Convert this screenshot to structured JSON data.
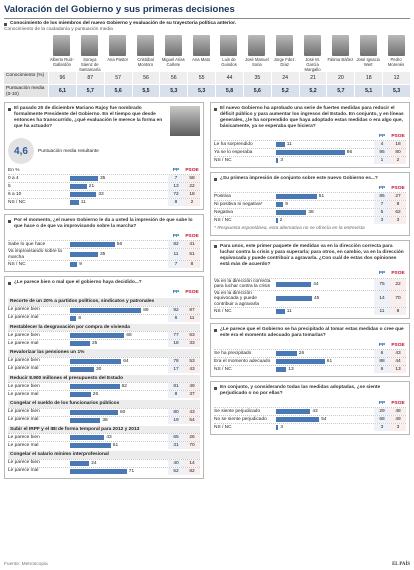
{
  "title": "Valoración del Gobierno y sus primeras decisiones",
  "ministers_section": {
    "intro": "Conocimiento de los miembros del nuevo Gobierno y evaluación de su trayectoria política anterior.",
    "subtitle": "Conocimiento de la ciudadanía y puntuación media",
    "names": [
      "Alberto Ruiz-Gallardón",
      "Soraya Sáenz de Santamaría",
      "Ana Pastor",
      "Cristóbal Montoro",
      "Miguel Arias Cañete",
      "Ana Mato",
      "Luis de Guindos",
      "José Manuel Soria",
      "Jorge Fdez. Díaz",
      "José M. García Margallo",
      "Fátima Báñez",
      "José Ignacio Wert",
      "Pedro Morenés"
    ],
    "rows": [
      {
        "label": "Conocimiento (%)",
        "values": [
          96,
          87,
          57,
          56,
          56,
          55,
          44,
          35,
          24,
          21,
          20,
          18,
          12
        ]
      },
      {
        "label": "Puntuación media (0-10)",
        "values": [
          "6,1",
          "5,7",
          "5,6",
          "5,5",
          "5,3",
          "5,3",
          "5,8",
          "5,6",
          "5,2",
          "5,2",
          "5,7",
          "5,1",
          "5,3"
        ]
      }
    ]
  },
  "left": [
    {
      "question": "El pasado 20 de diciembre Mariano Rajoy fue nombrado formalmente Presidente del Gobierno. En el tiempo que desde entonces ha transcurrido, ¿qué evaluación le merece la forma en que ha actuado?",
      "score": "4,6",
      "score_label": "Puntuación media resultante",
      "unit": "En %",
      "column_labels": [
        "PP",
        "PSOE"
      ],
      "rows": [
        {
          "label": "0 a 4",
          "values": [
            35,
            7,
            58
          ]
        },
        {
          "label": "5",
          "values": [
            21,
            13,
            22
          ]
        },
        {
          "label": "6 a 10",
          "values": [
            33,
            72,
            18
          ]
        },
        {
          "label": "NS / NC",
          "values": [
            11,
            8,
            2
          ]
        }
      ]
    },
    {
      "question": "Por el momento, ¿el nuevo Gobierno le da a usted la impresión de que sabe lo que hace o de que va improvisando sobre la marcha?",
      "column_labels": [
        "PP",
        "PSOE"
      ],
      "rows": [
        {
          "label": "Sabe lo que hace",
          "values": [
            56,
            82,
            41
          ]
        },
        {
          "label": "Va improvisando sobre la marcha",
          "values": [
            35,
            11,
            51
          ]
        },
        {
          "label": "NS / NC",
          "values": [
            9,
            7,
            8
          ]
        }
      ]
    },
    {
      "question": "¿Le parece bien o mal que el gobierno haya decidido...?",
      "column_labels": [
        "PP",
        "PSOE"
      ],
      "groups": [
        {
          "title": "Recorte de un 20% a partidos políticos, sindicatos y patronales",
          "rows": [
            {
              "label": "Le parece bien",
              "values": [
                89,
                92,
                87
              ]
            },
            {
              "label": "Le parece mal",
              "values": [
                8,
                6,
                11
              ]
            }
          ]
        },
        {
          "title": "Restablecer la desgravación por compra de vivienda",
          "rows": [
            {
              "label": "Le parece bien",
              "values": [
                68,
                77,
                63
              ]
            },
            {
              "label": "Le parece mal",
              "values": [
                25,
                18,
                33
              ]
            }
          ]
        },
        {
          "title": "Revalorizar las pensiones un 1%",
          "rows": [
            {
              "label": "Le parece bien",
              "values": [
                64,
                78,
                53
              ]
            },
            {
              "label": "Le parece mal",
              "values": [
                30,
                17,
                43
              ]
            }
          ]
        },
        {
          "title": "Reducir 8.900 millones el presupuesto del Estado",
          "rows": [
            {
              "label": "Le parece bien",
              "values": [
                62,
                81,
                49
              ]
            },
            {
              "label": "Le parece mal",
              "values": [
                26,
                8,
                37
              ]
            }
          ]
        },
        {
          "title": "Congelar el sueldo de los funcionarios públicos",
          "rows": [
            {
              "label": "Le parece bien",
              "values": [
                60,
                80,
                43
              ]
            },
            {
              "label": "Le parece mal",
              "values": [
                38,
                19,
                54
              ]
            }
          ]
        },
        {
          "title": "Subir el IRPF y el IBI de forma temporal para 2012 y 2013",
          "rows": [
            {
              "label": "Le parece bien",
              "values": [
                43,
                65,
                26
              ]
            },
            {
              "label": "Le parece mal",
              "values": [
                51,
                31,
                70
              ]
            }
          ]
        },
        {
          "title": "Congelar el salario mínimo interprofesional",
          "rows": [
            {
              "label": "Le parece bien",
              "values": [
                24,
                40,
                14
              ]
            },
            {
              "label": "Le parece mal",
              "values": [
                71,
                52,
                82
              ]
            }
          ]
        }
      ]
    }
  ],
  "right": [
    {
      "question": "El nuevo Gobierno ha aprobado una serie de fuertes medidas para reducir el déficit público y para aumentar los ingresos del Estado. En conjunto, y en líneas generales, ¿le ha sorprendido que haya adoptado estas medidas o era algo que, básicamente, ya se esperaba que hiciera?",
      "column_labels": [
        "PP",
        "PSOE"
      ],
      "rows": [
        {
          "label": "Le ha sorprendido",
          "values": [
            11,
            4,
            18
          ]
        },
        {
          "label": "Ya se lo esperaba",
          "values": [
            86,
            95,
            80
          ]
        },
        {
          "label": "NS / NC",
          "values": [
            3,
            1,
            2
          ]
        }
      ]
    },
    {
      "question": "¿Su primera impresión de conjunto sobre este nuevo Gobierno es...?",
      "column_labels": [
        "PP",
        "PSOE"
      ],
      "rows": [
        {
          "label": "Positiva",
          "values": [
            51,
            85,
            27
          ]
        },
        {
          "label": "Ni positiva ni negativa*",
          "values": [
            9,
            7,
            8
          ]
        },
        {
          "label": "Negativa",
          "values": [
            38,
            5,
            62
          ]
        },
        {
          "label": "NS / NC",
          "values": [
            2,
            3,
            3
          ]
        }
      ],
      "note": "* Respuesta espontánea, esta alternativa no se ofrecía en la entrevista"
    },
    {
      "question": "Para unos, este primer paquete de medidas va en la dirección correcta para luchar contra la crisis y para superarla; para otros, en cambio, va en la dirección equivocada y puede contribuir a agravarla. ¿Con cuál de estas dos opiniones está más de acuerdo?",
      "column_labels": [
        "PP",
        "PSOE"
      ],
      "rows": [
        {
          "label": "Va en la dirección correcta para luchar contra la crisis",
          "values": [
            44,
            75,
            22
          ]
        },
        {
          "label": "Va en la dirección equivocada y puede contribuir a agravarla",
          "values": [
            45,
            14,
            70
          ]
        },
        {
          "label": "NS / NC",
          "values": [
            11,
            11,
            8
          ]
        }
      ]
    },
    {
      "question": "¿Le parece que el Gobierno se ha precipitado al tomar estas medidas o cree que este era el momento adecuado para tomarlas?",
      "column_labels": [
        "PP",
        "PSOE"
      ],
      "rows": [
        {
          "label": "Se ha precipitado",
          "values": [
            26,
            6,
            43
          ]
        },
        {
          "label": "Era el momento adecuado",
          "values": [
            61,
            88,
            44
          ]
        },
        {
          "label": "NS / NC",
          "values": [
            13,
            6,
            13
          ]
        }
      ]
    },
    {
      "question": "En conjunto, y considerando todas las medidas adoptadas, ¿se siente perjudicado o no por ellas?",
      "column_labels": [
        "PP",
        "PSOE"
      ],
      "rows": [
        {
          "label": "Se siente perjudicado",
          "values": [
            43,
            29,
            48
          ]
        },
        {
          "label": "No se siente perjudicado",
          "values": [
            54,
            68,
            49
          ]
        },
        {
          "label": "NS / NC",
          "values": [
            3,
            3,
            3
          ]
        }
      ]
    }
  ],
  "source": "Fuente: Metroscopia",
  "brand": "EL PAÍS"
}
